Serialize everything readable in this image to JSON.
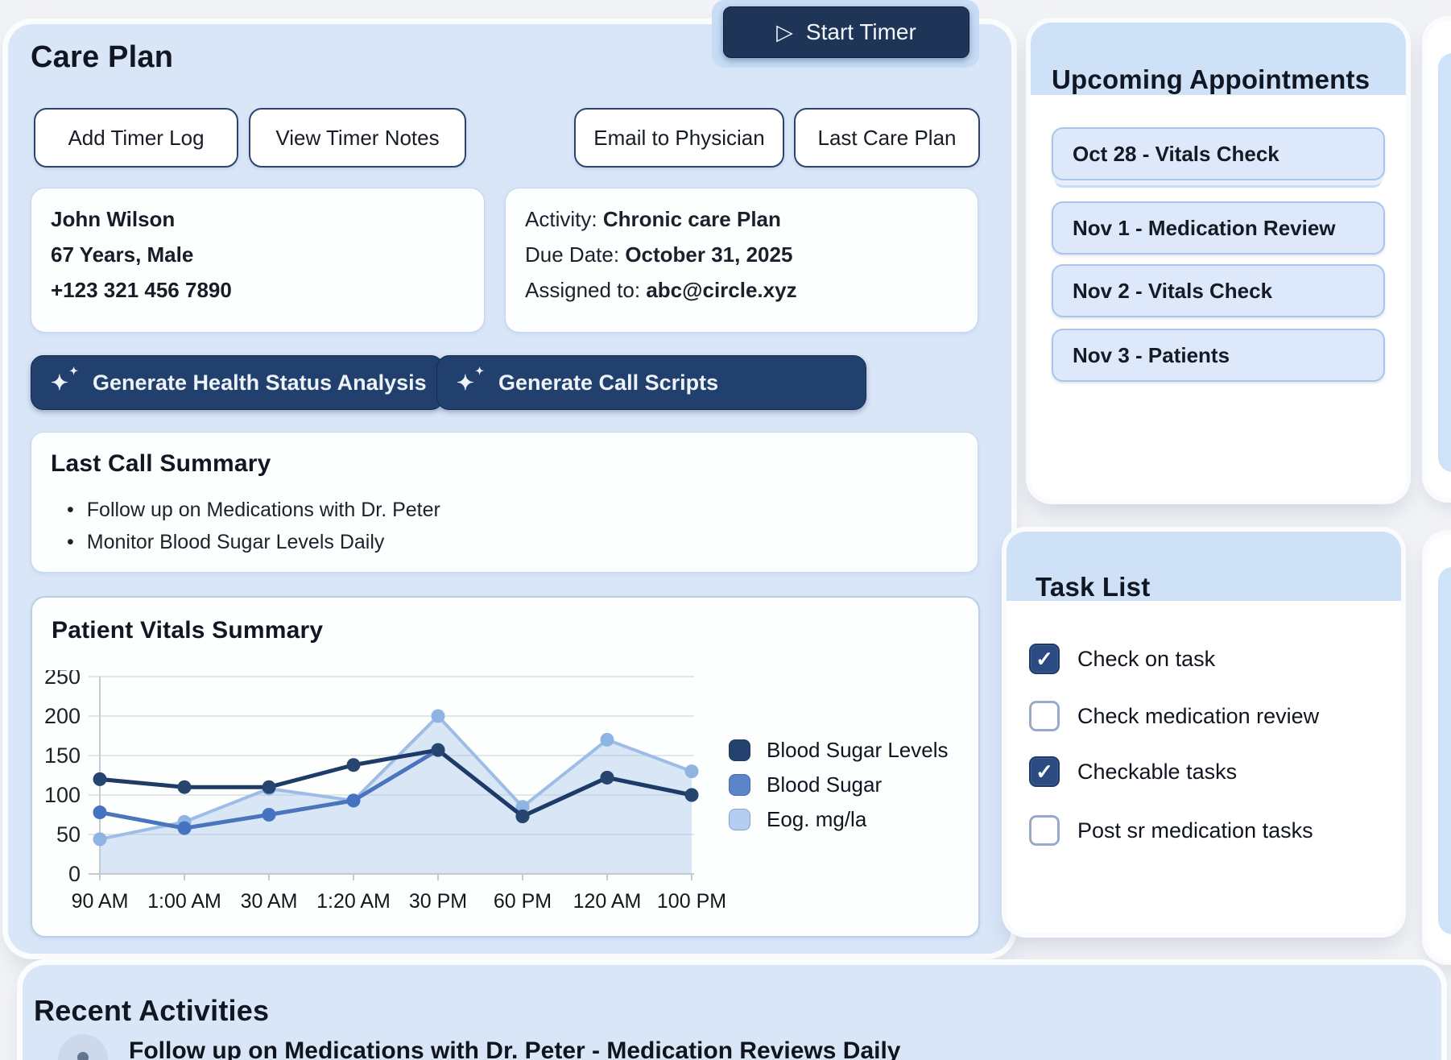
{
  "icons": {
    "play": "▷",
    "sparkles": "✦",
    "check": "✓",
    "bullet": "•"
  },
  "care_plan": {
    "title": "Care Plan",
    "start_timer_label": "Start Timer",
    "buttons": [
      "Add Timer Log",
      "View Timer Notes",
      "Email to Physician",
      "Last Care Plan"
    ],
    "patient": {
      "name": "John Wilson",
      "age_gender": "67 Years, Male",
      "phone": "+123 321 456 7890"
    },
    "activity": {
      "activity_label": "Activity:",
      "activity_value": "Chronic care Plan",
      "due_label": "Due Date:",
      "due_value": "October 31, 2025",
      "assigned_label": "Assigned to:",
      "assigned_value": "abc@circle.xyz"
    },
    "generate_buttons": [
      "Generate Health Status Analysis",
      "Generate Call Scripts"
    ],
    "last_call_summary": {
      "title": "Last Call Summary",
      "items": [
        "Follow up on Medications with Dr. Peter",
        "Monitor Blood Sugar Levels Daily"
      ]
    }
  },
  "vitals": {
    "title": "Patient Vitals Summary"
  },
  "chart_data": {
    "type": "line",
    "title": "Patient Vitals Summary",
    "categories": [
      "90 AM",
      "1:00 AM",
      "30 AM",
      "1:20 AM",
      "30 PM",
      "60 PM",
      "120 AM",
      "100 PM"
    ],
    "series": [
      {
        "name": "Blood Sugar Levels",
        "color": "#1e3a66",
        "dot": "#27466f",
        "legend": "#24426e",
        "width": 5,
        "values": [
          120,
          110,
          110,
          138,
          157,
          73,
          122,
          100
        ]
      },
      {
        "name": "Blood Sugar",
        "color": "#4a74bc",
        "dot": "#4673c0",
        "legend": "#5b85c9",
        "width": 5,
        "values": [
          78,
          58,
          75,
          93,
          157,
          73,
          122,
          100
        ]
      },
      {
        "name": "Eog. mg/la",
        "color": "#9dbde6",
        "dot": "#8fb4e2",
        "legend": "#b4cdf0",
        "width": 4,
        "area": true,
        "fill": "rgba(174,201,235,0.45)",
        "values": [
          44,
          66,
          108,
          93,
          200,
          85,
          170,
          130
        ]
      }
    ],
    "ylim": [
      0,
      250
    ],
    "ytick": 50,
    "grid": true,
    "legend_position": "right"
  },
  "appointments": {
    "title": "Upcoming Appointments",
    "items": [
      "Oct 28 - Vitals Check",
      "Nov 1 - Medication Review",
      "Nov 2 - Vitals Check",
      "Nov 3 - Patients"
    ]
  },
  "task_list": {
    "title": "Task List",
    "tasks": [
      {
        "label": "Check on task",
        "checked": true
      },
      {
        "label": "Check medication review",
        "checked": false
      },
      {
        "label": "Checkable tasks",
        "checked": true
      },
      {
        "label": "Post sr medication tasks",
        "checked": false
      }
    ]
  },
  "recent_activities": {
    "title": "Recent Activities",
    "items": [
      "Follow up on Medications with Dr. Peter - Medication Reviews Daily"
    ]
  },
  "colors": {
    "page_bg": "#f2f3f6",
    "panel_blue": "#d9e6f8",
    "band_blue": "#cfe1f7",
    "navy": "#21406e",
    "timer_navy": "#1f3557",
    "pill_blue": "#dde9fb",
    "pill_border": "#a9c6ea",
    "checkbox_navy": "#2b4b82"
  }
}
